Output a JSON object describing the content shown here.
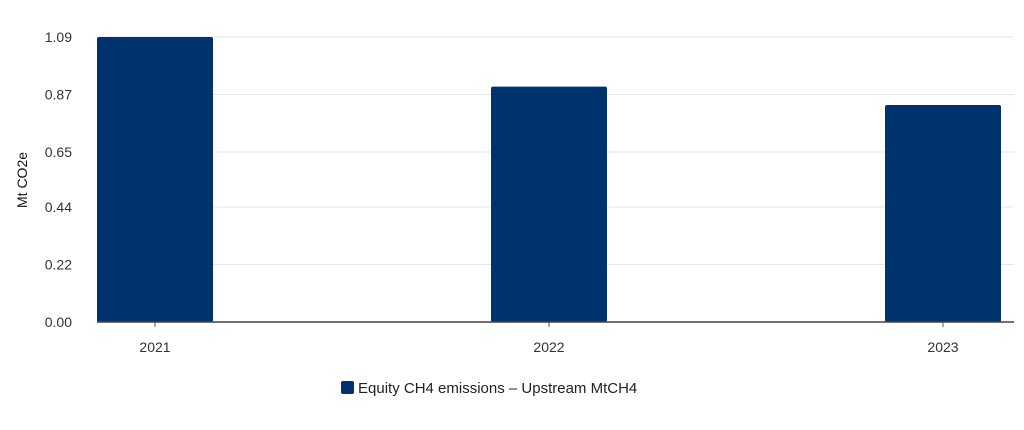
{
  "chart_data": {
    "type": "bar",
    "title": "",
    "xlabel": "",
    "ylabel": "Mt CO2e",
    "categories": [
      "2021",
      "2022",
      "2023"
    ],
    "series": [
      {
        "name": "Equity CH4 emissions – Upstream MtCH4",
        "values": [
          1.09,
          0.9,
          0.83
        ],
        "color": "#00326e"
      }
    ],
    "ylim": [
      0,
      1.09
    ],
    "yticks": [
      "0.00",
      "0.22",
      "0.44",
      "0.65",
      "0.87",
      "1.09"
    ],
    "grid": true,
    "legend": "bottom-center"
  }
}
